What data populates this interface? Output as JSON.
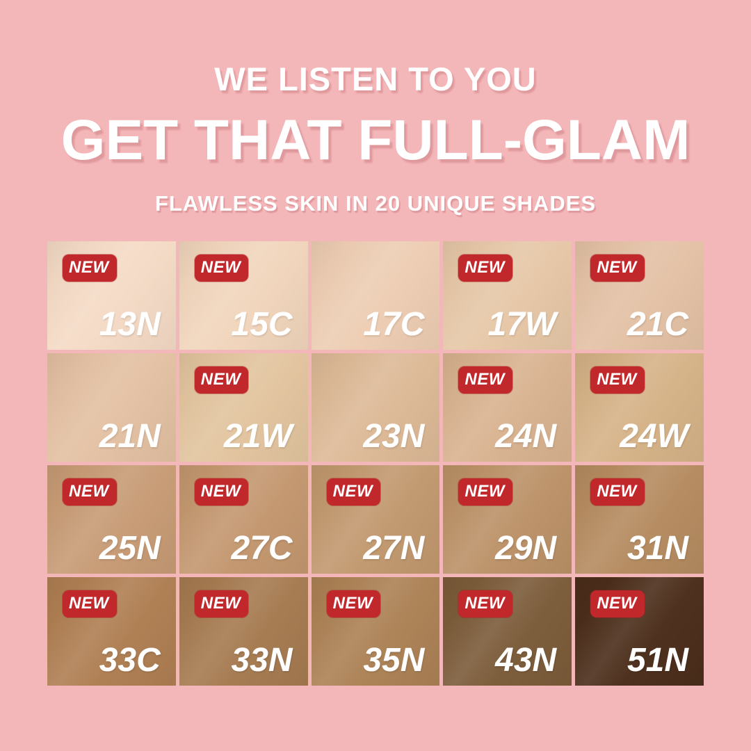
{
  "header": {
    "line1": "WE LISTEN TO YOU",
    "line2": "GET THAT FULL-GLAM",
    "line3": "FLAWLESS SKIN IN 20 UNIQUE SHADES"
  },
  "badge_label": "NEW",
  "colors": {
    "background": "#F4B7B9",
    "badge_red": "#C0282B",
    "heading_text": "#FFFFFF",
    "shade_label_text": "#FFFFFF"
  },
  "grid": {
    "columns": 5,
    "rows": 4
  },
  "shades": [
    {
      "code": "13N",
      "new": true,
      "color": "#F4DAC5"
    },
    {
      "code": "15C",
      "new": true,
      "color": "#F1D5BC"
    },
    {
      "code": "17C",
      "new": false,
      "color": "#EDCDB3"
    },
    {
      "code": "17W",
      "new": true,
      "color": "#E6C7A7"
    },
    {
      "code": "21C",
      "new": true,
      "color": "#E3C1A5"
    },
    {
      "code": "21N",
      "new": false,
      "color": "#E3C0A2"
    },
    {
      "code": "21W",
      "new": true,
      "color": "#E2C49E"
    },
    {
      "code": "23N",
      "new": false,
      "color": "#DCB996"
    },
    {
      "code": "24N",
      "new": true,
      "color": "#D8B28F"
    },
    {
      "code": "24W",
      "new": true,
      "color": "#D5B287"
    },
    {
      "code": "25N",
      "new": true,
      "color": "#C79B75"
    },
    {
      "code": "27C",
      "new": true,
      "color": "#C3976F"
    },
    {
      "code": "27N",
      "new": true,
      "color": "#C1986E"
    },
    {
      "code": "29N",
      "new": true,
      "color": "#BB9167"
    },
    {
      "code": "31N",
      "new": true,
      "color": "#B58B60"
    },
    {
      "code": "33C",
      "new": true,
      "color": "#AF7E52"
    },
    {
      "code": "33N",
      "new": true,
      "color": "#A57A50"
    },
    {
      "code": "35N",
      "new": true,
      "color": "#AC8155"
    },
    {
      "code": "43N",
      "new": true,
      "color": "#7B5B39"
    },
    {
      "code": "51N",
      "new": true,
      "color": "#4B2D1A"
    }
  ]
}
